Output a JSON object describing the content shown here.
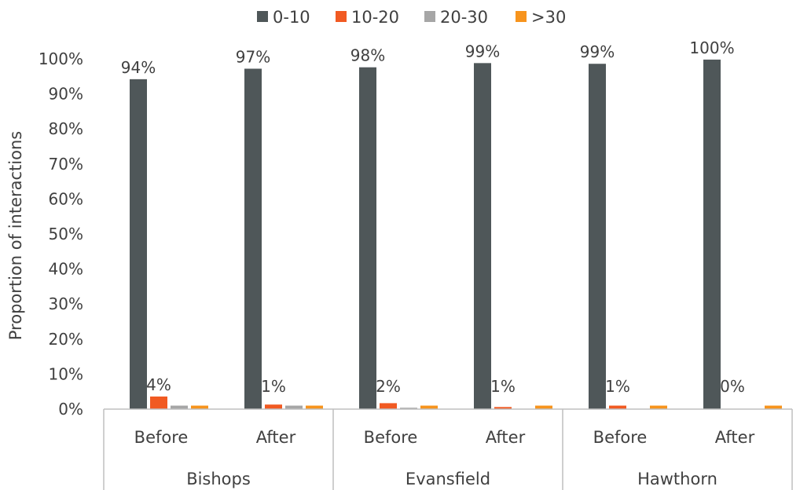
{
  "chart_data": {
    "type": "bar",
    "title": "",
    "xlabel": "",
    "ylabel": "Proportion of interactions",
    "ylim": [
      0,
      100
    ],
    "yticks": [
      "0%",
      "10%",
      "20%",
      "30%",
      "40%",
      "50%",
      "60%",
      "70%",
      "80%",
      "90%",
      "100%"
    ],
    "groups": [
      {
        "name": "Bishops",
        "categories": [
          "Before",
          "After"
        ]
      },
      {
        "name": "Evansfield",
        "categories": [
          "Before",
          "After"
        ]
      },
      {
        "name": "Hawthorn",
        "categories": [
          "Before",
          "After"
        ]
      }
    ],
    "categories": [
      "Before",
      "After",
      "Before",
      "After",
      "Before",
      "After"
    ],
    "series": [
      {
        "name": "0-10",
        "color": "#4f5759",
        "values": [
          94.2,
          97.2,
          97.6,
          98.8,
          98.6,
          99.8
        ]
      },
      {
        "name": "10-20",
        "color": "#f15a22",
        "values": [
          3.6,
          1.3,
          1.7,
          0.6,
          1.0,
          0.0
        ]
      },
      {
        "name": "20-30",
        "color": "#a6a6a6",
        "values": [
          1.0,
          1.0,
          0.4,
          0.0,
          0.0,
          0.0
        ]
      },
      {
        "name": ">30",
        "color": "#f7941d",
        "values": [
          1.0,
          1.0,
          1.0,
          1.0,
          1.0,
          1.0
        ]
      }
    ],
    "data_labels": [
      {
        "series": 0,
        "labels": [
          "94%",
          "97%",
          "98%",
          "99%",
          "99%",
          "100%"
        ]
      },
      {
        "series": 1,
        "labels": [
          "4%",
          "1%",
          "2%",
          "1%",
          "1%",
          "0%"
        ]
      }
    ],
    "legend_position": "top",
    "grid": false
  }
}
